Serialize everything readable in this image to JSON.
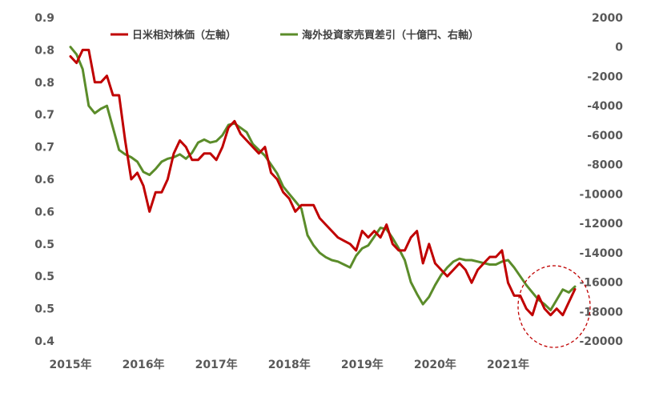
{
  "chart_data": {
    "type": "line",
    "title": "",
    "xlabel": "",
    "ylabel": "",
    "x_tick_labels": [
      "2015年",
      "2016年",
      "2017年",
      "2018年",
      "2019年",
      "2020年",
      "2021年"
    ],
    "y_left_tick_labels": [
      "0.9",
      "0.8",
      "0.8",
      "0.7",
      "0.7",
      "0.6",
      "0.6",
      "0.5",
      "0.5",
      "0.5",
      "0.4"
    ],
    "y_right_tick_labels": [
      "2000",
      "0",
      "-2000",
      "-4000",
      "-6000",
      "-8000",
      "-10000",
      "-12000",
      "-14000",
      "-16000",
      "-18000",
      "-20000"
    ],
    "y_left_lim": [
      0.4,
      0.9
    ],
    "y_right_lim": [
      -20000,
      2000
    ],
    "x_range": [
      "2015-01",
      "2021-12"
    ],
    "grid": false,
    "legend_position": "top",
    "annotation": "dashed red circle highlighting late 2021",
    "series": [
      {
        "name": "日米相対株価（左軸）",
        "axis": "left",
        "color": "#C00000",
        "x": [
          "2015-01",
          "2015-02",
          "2015-03",
          "2015-04",
          "2015-05",
          "2015-06",
          "2015-07",
          "2015-08",
          "2015-09",
          "2015-10",
          "2015-11",
          "2015-12",
          "2016-01",
          "2016-02",
          "2016-03",
          "2016-04",
          "2016-05",
          "2016-06",
          "2016-07",
          "2016-08",
          "2016-09",
          "2016-10",
          "2016-11",
          "2016-12",
          "2017-01",
          "2017-02",
          "2017-03",
          "2017-04",
          "2017-05",
          "2017-06",
          "2017-07",
          "2017-08",
          "2017-09",
          "2017-10",
          "2017-11",
          "2017-12",
          "2018-01",
          "2018-02",
          "2018-03",
          "2018-04",
          "2018-05",
          "2018-06",
          "2018-07",
          "2018-08",
          "2018-09",
          "2018-10",
          "2018-11",
          "2018-12",
          "2019-01",
          "2019-02",
          "2019-03",
          "2019-04",
          "2019-05",
          "2019-06",
          "2019-07",
          "2019-08",
          "2019-09",
          "2019-10",
          "2019-11",
          "2019-12",
          "2020-01",
          "2020-02",
          "2020-03",
          "2020-04",
          "2020-05",
          "2020-06",
          "2020-07",
          "2020-08",
          "2020-09",
          "2020-10",
          "2020-11",
          "2020-12",
          "2021-01",
          "2021-02",
          "2021-03",
          "2021-04",
          "2021-05",
          "2021-06",
          "2021-07",
          "2021-08",
          "2021-09",
          "2021-10",
          "2021-11",
          "2021-12"
        ],
        "values": [
          0.84,
          0.83,
          0.85,
          0.85,
          0.8,
          0.8,
          0.81,
          0.78,
          0.78,
          0.71,
          0.65,
          0.66,
          0.64,
          0.6,
          0.63,
          0.63,
          0.65,
          0.69,
          0.71,
          0.7,
          0.68,
          0.68,
          0.69,
          0.69,
          0.68,
          0.7,
          0.73,
          0.74,
          0.72,
          0.71,
          0.7,
          0.69,
          0.7,
          0.66,
          0.65,
          0.63,
          0.62,
          0.6,
          0.61,
          0.61,
          0.61,
          0.59,
          0.58,
          0.57,
          0.56,
          0.555,
          0.55,
          0.54,
          0.57,
          0.56,
          0.57,
          0.56,
          0.58,
          0.55,
          0.54,
          0.54,
          0.56,
          0.57,
          0.52,
          0.55,
          0.52,
          0.51,
          0.5,
          0.51,
          0.52,
          0.51,
          0.49,
          0.51,
          0.52,
          0.53,
          0.53,
          0.54,
          0.49,
          0.47,
          0.47,
          0.45,
          0.44,
          0.47,
          0.45,
          0.44,
          0.45,
          0.44,
          0.46,
          0.48
        ]
      },
      {
        "name": "海外投資家売買差引（十億円、右軸）",
        "axis": "right",
        "color": "#5B8C2A",
        "x": [
          "2015-01",
          "2015-02",
          "2015-03",
          "2015-04",
          "2015-05",
          "2015-06",
          "2015-07",
          "2015-08",
          "2015-09",
          "2015-10",
          "2015-11",
          "2015-12",
          "2016-01",
          "2016-02",
          "2016-03",
          "2016-04",
          "2016-05",
          "2016-06",
          "2016-07",
          "2016-08",
          "2016-09",
          "2016-10",
          "2016-11",
          "2016-12",
          "2017-01",
          "2017-02",
          "2017-03",
          "2017-04",
          "2017-05",
          "2017-06",
          "2017-07",
          "2017-08",
          "2017-09",
          "2017-10",
          "2017-11",
          "2017-12",
          "2018-01",
          "2018-02",
          "2018-03",
          "2018-04",
          "2018-05",
          "2018-06",
          "2018-07",
          "2018-08",
          "2018-09",
          "2018-10",
          "2018-11",
          "2018-12",
          "2019-01",
          "2019-02",
          "2019-03",
          "2019-04",
          "2019-05",
          "2019-06",
          "2019-07",
          "2019-08",
          "2019-09",
          "2019-10",
          "2019-11",
          "2019-12",
          "2020-01",
          "2020-02",
          "2020-03",
          "2020-04",
          "2020-05",
          "2020-06",
          "2020-07",
          "2020-08",
          "2020-09",
          "2020-10",
          "2020-11",
          "2020-12",
          "2021-01",
          "2021-02",
          "2021-03",
          "2021-04",
          "2021-05",
          "2021-06",
          "2021-07",
          "2021-08",
          "2021-09",
          "2021-10",
          "2021-11",
          "2021-12"
        ],
        "values": [
          0,
          -500,
          -1500,
          -4000,
          -4500,
          -4200,
          -4000,
          -5500,
          -7000,
          -7300,
          -7500,
          -7800,
          -8500,
          -8700,
          -8300,
          -7800,
          -7600,
          -7500,
          -7300,
          -7600,
          -7200,
          -6500,
          -6300,
          -6500,
          -6400,
          -6000,
          -5300,
          -5200,
          -5500,
          -5800,
          -6600,
          -7000,
          -7400,
          -8000,
          -8600,
          -9500,
          -10000,
          -10500,
          -11000,
          -12800,
          -13500,
          -14000,
          -14300,
          -14500,
          -14600,
          -14800,
          -15000,
          -14200,
          -13700,
          -13500,
          -12900,
          -12300,
          -12400,
          -13000,
          -13700,
          -14500,
          -16000,
          -16800,
          -17500,
          -17000,
          -16200,
          -15500,
          -15000,
          -14600,
          -14400,
          -14500,
          -14500,
          -14600,
          -14700,
          -14800,
          -14800,
          -14600,
          -14500,
          -15000,
          -15600,
          -16200,
          -16700,
          -17200,
          -17500,
          -17900,
          -17200,
          -16500,
          -16700,
          -16300
        ]
      }
    ]
  }
}
